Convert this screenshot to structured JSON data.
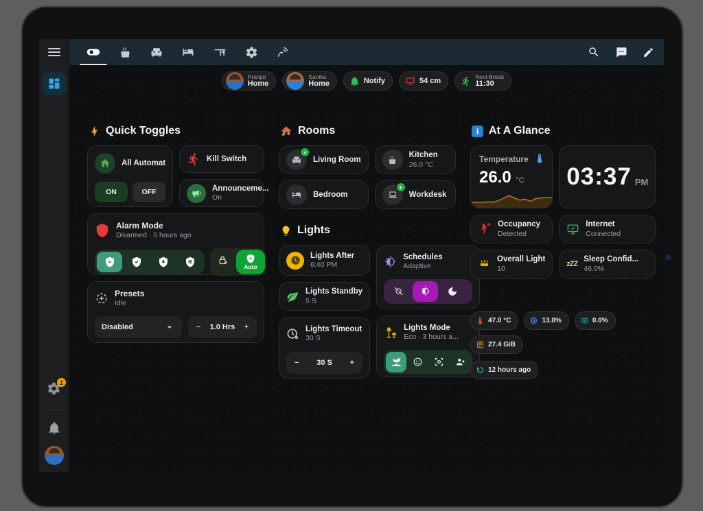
{
  "toolbar": {
    "tabs": [
      {
        "icon": "toggle-switch-icon",
        "active": true
      },
      {
        "icon": "kitchen-stove-icon"
      },
      {
        "icon": "sofa-icon"
      },
      {
        "icon": "bed-icon"
      },
      {
        "icon": "desk-icon"
      },
      {
        "icon": "settings-gear-icon"
      },
      {
        "icon": "signal-waves-icon"
      }
    ],
    "actions": [
      {
        "icon": "search-icon"
      },
      {
        "icon": "assist-chat-icon"
      },
      {
        "icon": "edit-pencil-icon"
      }
    ]
  },
  "chips": {
    "pranjal": {
      "name": "Pranjal",
      "status": "Home"
    },
    "sanika": {
      "name": "Sanika",
      "status": "Home"
    },
    "notify": {
      "label": "Notify"
    },
    "screen_distance": {
      "label": "54 cm"
    },
    "next_break": {
      "label": "Next Break",
      "value": "11:30"
    }
  },
  "quick_toggles": {
    "title": "Quick Toggles",
    "all_automations": {
      "label": "All Automati...",
      "on": "ON",
      "off": "OFF"
    },
    "kill_switch": {
      "label": "Kill Switch"
    },
    "announcements": {
      "label": "Announceme...",
      "state": "On"
    },
    "alarm": {
      "title": "Alarm Mode",
      "subtitle": "Disarmed · 5 hours ago",
      "auto": "Auto"
    },
    "presets": {
      "title": "Presets",
      "subtitle": "Idle",
      "dropdown_value": "Disabled",
      "duration": "1.0 Hrs",
      "minus": "−",
      "plus": "+"
    }
  },
  "rooms": {
    "title": "Rooms",
    "items": [
      {
        "label": "Living Room"
      },
      {
        "label": "Kitchen",
        "value": "26.0 °C"
      },
      {
        "label": "Bedroom"
      },
      {
        "label": "Workdesk"
      }
    ]
  },
  "lights": {
    "title": "Lights",
    "after": {
      "label": "Lights After",
      "value": "6:40 PM"
    },
    "schedules": {
      "label": "Schedules",
      "value": "Adaptive"
    },
    "standby": {
      "label": "Lights Standby",
      "value": "5 S"
    },
    "timeout": {
      "label": "Lights Timeout",
      "value": "30 S",
      "stepper_value": "30 S",
      "minus": "−",
      "plus": "+"
    },
    "mode": {
      "label": "Lights Mode",
      "value": "Eco · 3 hours a..."
    }
  },
  "glance": {
    "title": "At A Glance",
    "temperature": {
      "label": "Temperature",
      "value": "26.0",
      "unit": "°C",
      "sparkline": [
        20,
        22,
        20,
        24,
        22,
        30,
        46,
        62,
        48,
        34,
        40,
        28,
        44,
        48,
        50,
        48
      ]
    },
    "clock": {
      "time": "03:37",
      "meridiem": "PM"
    },
    "occupancy": {
      "label": "Occupancy",
      "value": "Detected"
    },
    "internet": {
      "label": "Internet",
      "value": "Connected"
    },
    "overall_light": {
      "label": "Overall Light",
      "value": "10"
    },
    "sleep": {
      "label": "Sleep Confid...",
      "value": "46.0%",
      "icon_text": "zZZ"
    },
    "stats": [
      {
        "label": "47.0 °C"
      },
      {
        "label": "13.0%"
      },
      {
        "label": "0.0%"
      },
      {
        "label": "27.4 GiB"
      }
    ],
    "last_restart": {
      "label": "12 hours ago"
    }
  },
  "colors": {
    "accent_green": "#10a335",
    "selected_teal": "#3f9d7c",
    "selected_purple": "#a818b8",
    "alert_red": "#e23b3c",
    "warn_yellow": "#f0b400",
    "info_blue": "#36a3e4"
  }
}
